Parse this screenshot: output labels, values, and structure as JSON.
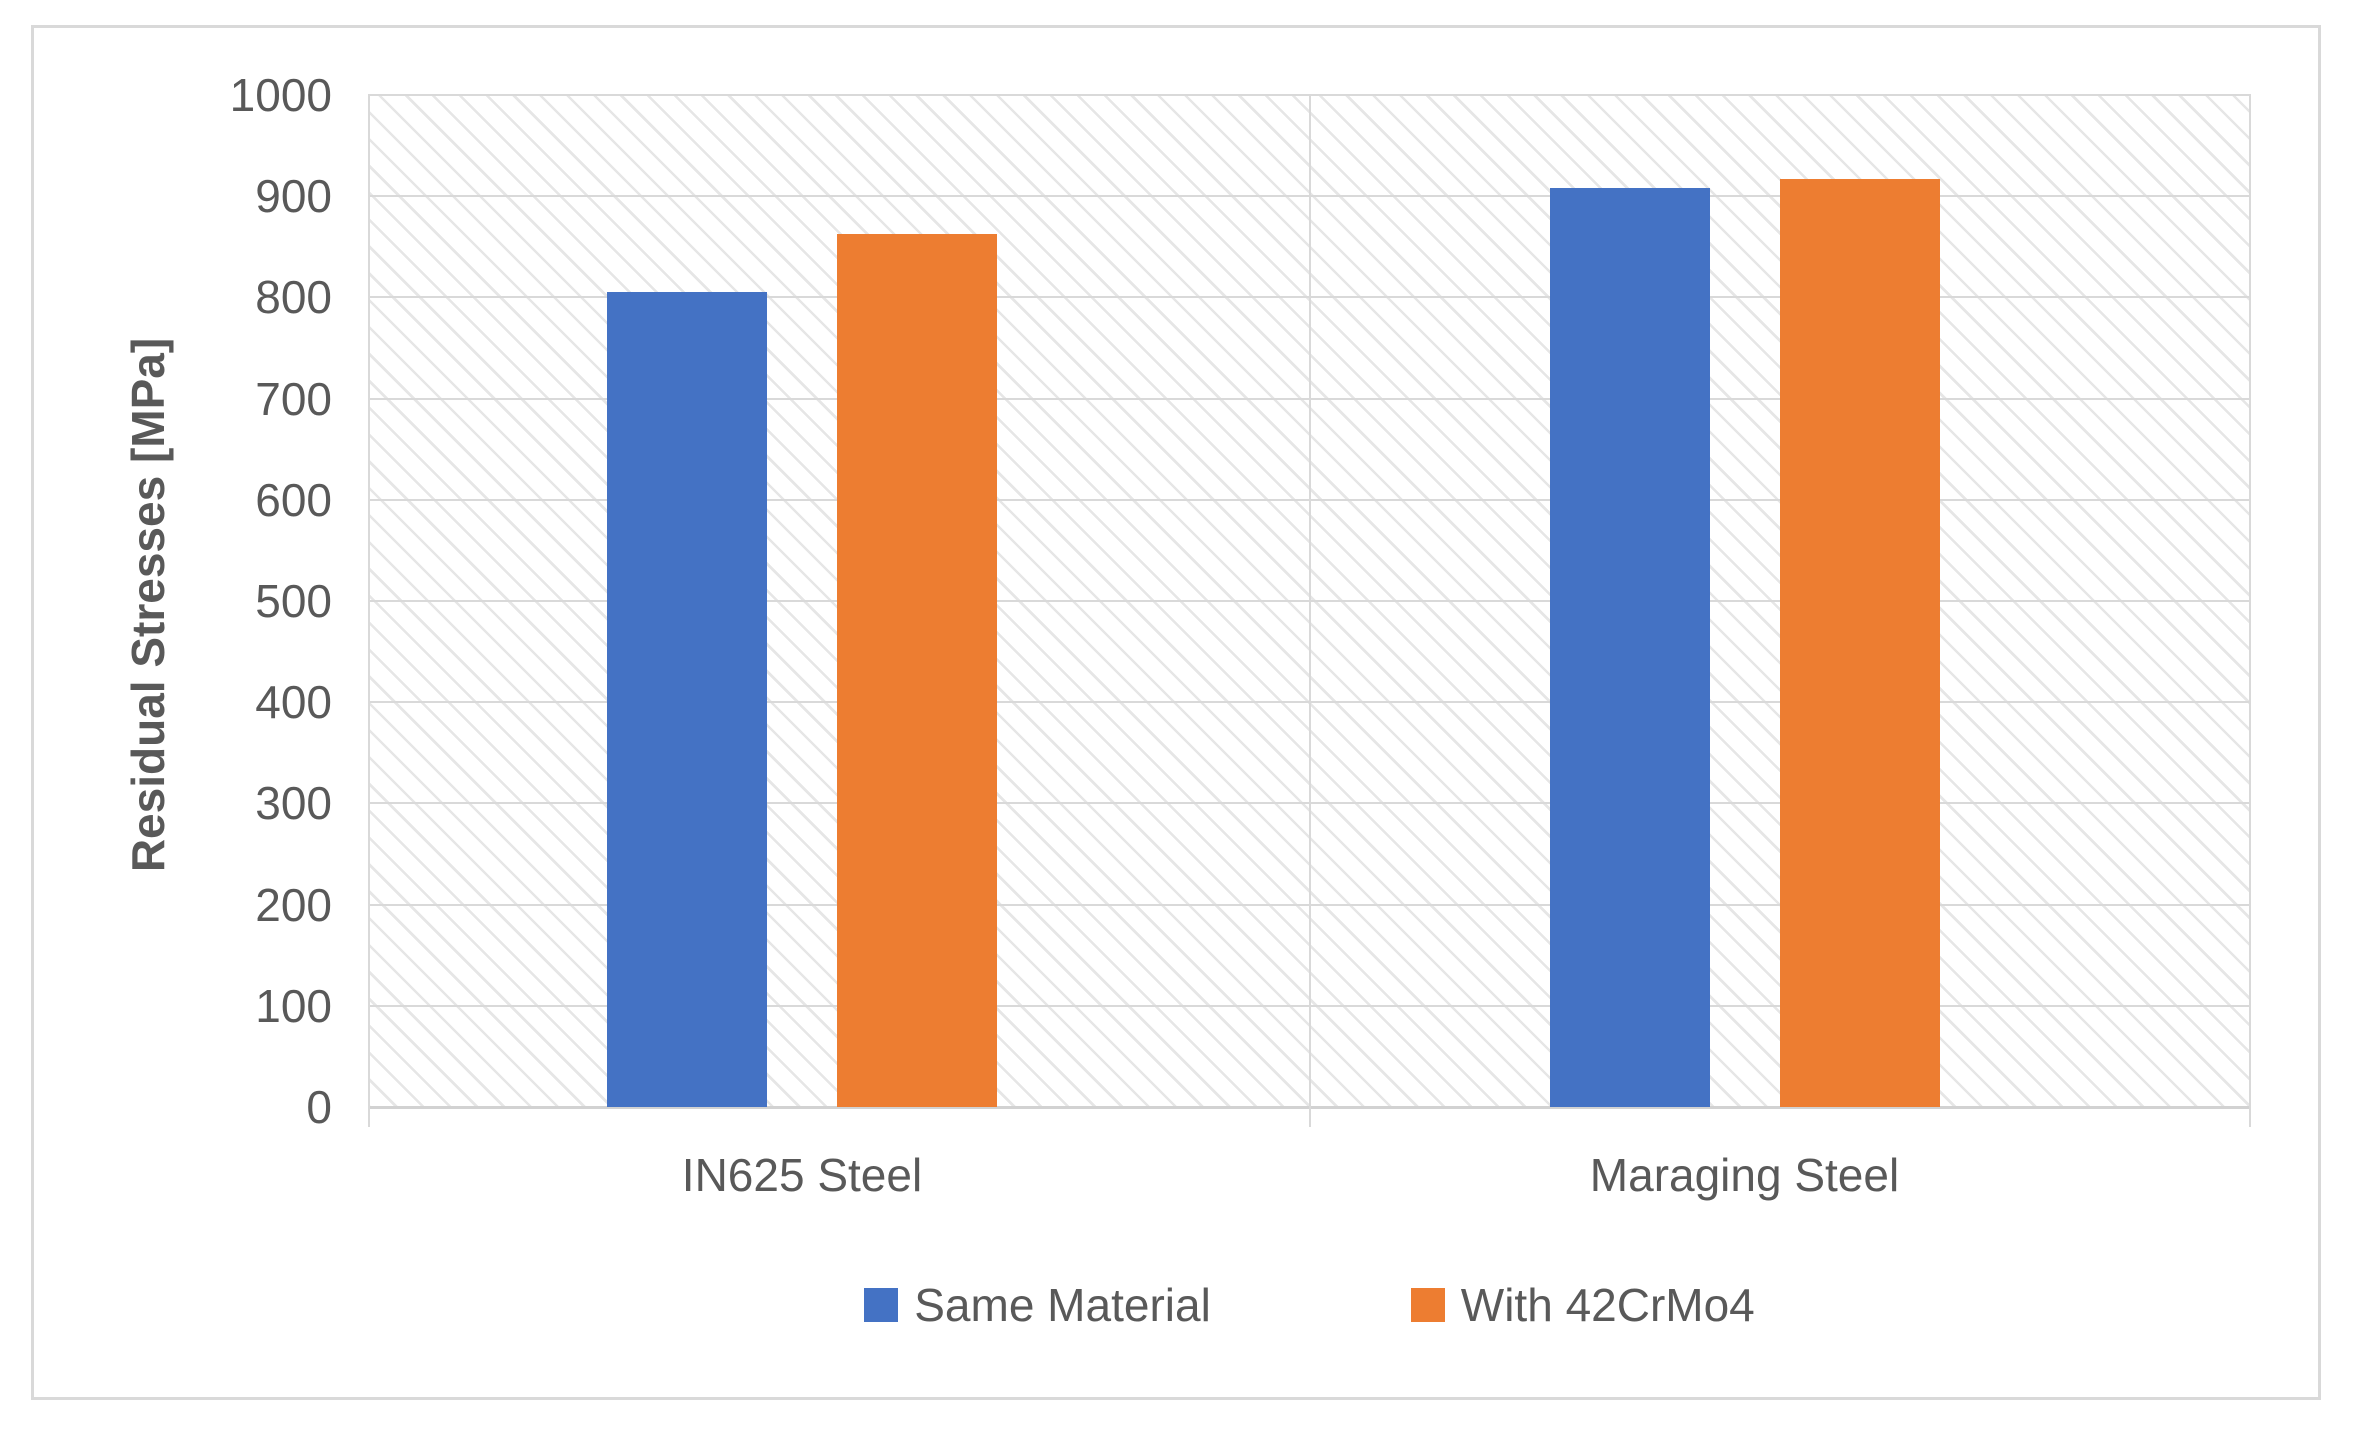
{
  "chart_data": {
    "type": "bar",
    "categories": [
      "IN625 Steel",
      "Maraging Steel"
    ],
    "series": [
      {
        "name": "Same Material",
        "color": "#4472C4",
        "values": [
          805,
          908
        ]
      },
      {
        "name": "With 42CrMo4",
        "color": "#ED7D31",
        "values": [
          863,
          917
        ]
      }
    ],
    "xlabel": "",
    "ylabel": "Residual Stresses [MPa]",
    "ylim": [
      0,
      1000
    ],
    "ytick_step": 100,
    "ytick_labels": [
      "1000",
      "900",
      "800",
      "700",
      "600",
      "500",
      "400",
      "300",
      "200",
      "100",
      "0"
    ],
    "grid": true,
    "legend_position": "bottom",
    "plot_background": "light-diagonal-hatch"
  },
  "colors": {
    "series_blue": "#4472C4",
    "series_orange": "#ED7D31",
    "gridline": "#D9D9D9",
    "frame_border": "#D9D9D9",
    "text": "#595959",
    "hatch": "#E6E6E6",
    "background": "#FFFFFF"
  }
}
